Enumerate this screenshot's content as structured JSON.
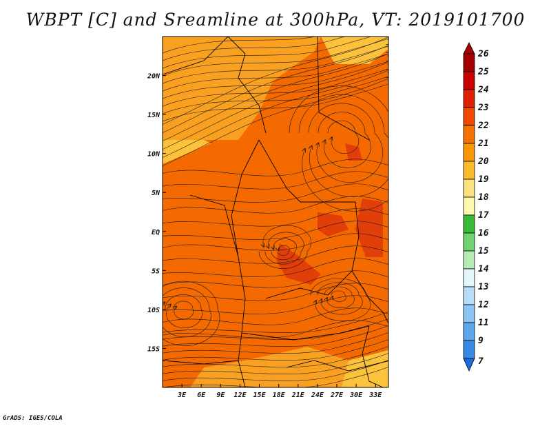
{
  "title": "WBPT [C] and Sreamline at 300hPa, VT: 2019101700",
  "credit": "GrADS: IGES/COLA",
  "map": {
    "lon_range": [
      0,
      35
    ],
    "lat_range": [
      -20,
      25
    ],
    "x_ticks": [
      {
        "lon": 3,
        "label": "3E"
      },
      {
        "lon": 6,
        "label": "6E"
      },
      {
        "lon": 9,
        "label": "9E"
      },
      {
        "lon": 12,
        "label": "12E"
      },
      {
        "lon": 15,
        "label": "15E"
      },
      {
        "lon": 18,
        "label": "18E"
      },
      {
        "lon": 21,
        "label": "21E"
      },
      {
        "lon": 24,
        "label": "24E"
      },
      {
        "lon": 27,
        "label": "27E"
      },
      {
        "lon": 30,
        "label": "30E"
      },
      {
        "lon": 33,
        "label": "33E"
      }
    ],
    "y_ticks": [
      {
        "lat": 20,
        "label": "20N"
      },
      {
        "lat": 15,
        "label": "15N"
      },
      {
        "lat": 10,
        "label": "10N"
      },
      {
        "lat": 5,
        "label": "5N"
      },
      {
        "lat": 0,
        "label": "EQ"
      },
      {
        "lat": -5,
        "label": "5S"
      },
      {
        "lat": -10,
        "label": "10S"
      },
      {
        "lat": -15,
        "label": "15S"
      }
    ]
  },
  "colorbar": {
    "levels": [
      {
        "label": "26",
        "color": "#a50000"
      },
      {
        "label": "25",
        "color": "#c80000"
      },
      {
        "label": "24",
        "color": "#e02000"
      },
      {
        "label": "23",
        "color": "#f04a00"
      },
      {
        "label": "22",
        "color": "#f87000"
      },
      {
        "label": "21",
        "color": "#fa9600"
      },
      {
        "label": "20",
        "color": "#fdb92e"
      },
      {
        "label": "19",
        "color": "#fde080"
      },
      {
        "label": "18",
        "color": "#fdf7b0"
      },
      {
        "label": "17",
        "color": "#38bb38"
      },
      {
        "label": "16",
        "color": "#6fd46f"
      },
      {
        "label": "15",
        "color": "#b4ecb4"
      },
      {
        "label": "14",
        "color": "#e4f8fc"
      },
      {
        "label": "13",
        "color": "#b8ddf8"
      },
      {
        "label": "12",
        "color": "#8cc4f4"
      },
      {
        "label": "11",
        "color": "#5ca6ee"
      },
      {
        "label": "9",
        "color": "#3888e6"
      },
      {
        "label": "7",
        "color": "#1c6ce0"
      }
    ]
  },
  "colors": {
    "base": "#f46a00",
    "warm_patch": "#e23e0a",
    "cool_patch": "#f9a020",
    "pale_patch": "#fcc23c",
    "line": "#1a1a1a"
  }
}
